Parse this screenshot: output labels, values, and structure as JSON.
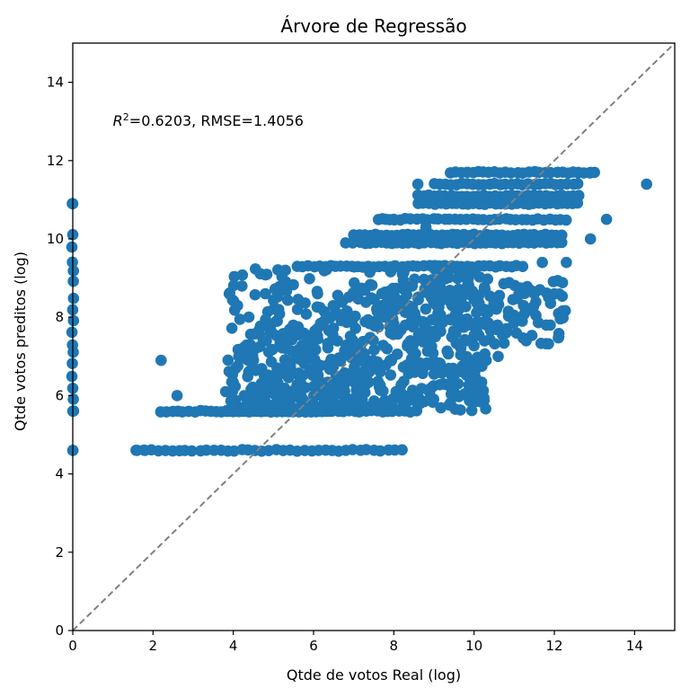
{
  "chart_data": {
    "type": "scatter",
    "title": "Árvore de Regressão",
    "xlabel": "Qtde de votos Real (log)",
    "ylabel": "Qtde votos preditos (log)",
    "xlim": [
      0,
      15
    ],
    "ylim": [
      0,
      15
    ],
    "xticks": [
      0,
      2,
      4,
      6,
      8,
      10,
      12,
      14
    ],
    "yticks": [
      0,
      2,
      4,
      6,
      8,
      10,
      12,
      14
    ],
    "grid": false,
    "marker_color": "#1f77b4",
    "reference_line": {
      "style": "dashed",
      "color": "#808080",
      "from": [
        0,
        0
      ],
      "to": [
        15,
        15
      ]
    },
    "annotation": {
      "r2_symbol": "R",
      "r2_exponent": "2",
      "text": "=0.6203, RMSE=1.4056",
      "x": 1.0,
      "y": 13.0
    },
    "clusters": [
      {
        "name": "zero-real",
        "x_range": [
          0,
          0.05
        ],
        "y_levels": [
          4.6,
          5.6,
          5.9,
          6.2,
          6.5,
          6.8,
          7.1,
          7.3,
          7.6,
          7.9,
          8.2,
          8.5,
          8.9,
          9.2,
          9.4,
          9.8,
          10.1,
          10.9
        ],
        "density": 1
      },
      {
        "name": "bottom-row",
        "x_range": [
          1.6,
          8.2
        ],
        "y_levels": [
          4.6
        ],
        "density": 0.8
      },
      {
        "name": "low-band",
        "x_range": [
          2.2,
          8.4
        ],
        "y_levels": [
          5.6
        ],
        "density": 1
      },
      {
        "name": "main-mass",
        "x_range": [
          3.8,
          10.3
        ],
        "y_range": [
          5.6,
          9.3
        ],
        "density": 1
      },
      {
        "name": "band-9-3",
        "x_range": [
          5.6,
          11.2
        ],
        "y_levels": [
          9.3
        ],
        "density": 1
      },
      {
        "name": "band-10",
        "x_range": [
          7.0,
          12.2
        ],
        "y_levels": [
          9.9,
          10.1
        ],
        "density": 1
      },
      {
        "name": "band-10-5",
        "x_range": [
          7.6,
          12.3
        ],
        "y_levels": [
          10.5
        ],
        "density": 1
      },
      {
        "name": "band-11",
        "x_range": [
          8.6,
          12.6
        ],
        "y_levels": [
          10.9,
          11.1
        ],
        "density": 1
      },
      {
        "name": "band-11-4",
        "x_range": [
          9.0,
          12.6
        ],
        "y_levels": [
          11.4
        ],
        "density": 1
      },
      {
        "name": "band-11-7",
        "x_range": [
          9.4,
          12.9
        ],
        "y_levels": [
          11.7
        ],
        "density": 1
      },
      {
        "name": "mid-right",
        "x_range": [
          10.2,
          12.3
        ],
        "y_range": [
          7.3,
          9.0
        ],
        "density": 0.6
      }
    ],
    "points": [
      [
        0,
        4.6
      ],
      [
        0,
        5.6
      ],
      [
        0,
        10.9
      ],
      [
        1.6,
        4.6
      ],
      [
        1.8,
        4.6
      ],
      [
        2.2,
        6.9
      ],
      [
        2.6,
        6.0
      ],
      [
        3.9,
        8.6
      ],
      [
        4.8,
        8.6
      ],
      [
        5.1,
        8.6
      ],
      [
        5.3,
        9.2
      ],
      [
        5.6,
        8.2
      ],
      [
        6.1,
        8.6
      ],
      [
        6.8,
        9.9
      ],
      [
        7.0,
        10.1
      ],
      [
        7.1,
        10.0
      ],
      [
        7.8,
        10.5
      ],
      [
        8.0,
        10.5
      ],
      [
        8.6,
        11.4
      ],
      [
        8.8,
        10.3
      ],
      [
        9.6,
        6.3
      ],
      [
        9.8,
        6.9
      ],
      [
        10.0,
        6.5
      ],
      [
        10.3,
        6.9
      ],
      [
        10.6,
        7.0
      ],
      [
        10.8,
        7.6
      ],
      [
        11.2,
        7.9
      ],
      [
        11.3,
        7.4
      ],
      [
        11.5,
        8.6
      ],
      [
        11.7,
        9.4
      ],
      [
        11.8,
        7.8
      ],
      [
        11.9,
        7.8
      ],
      [
        12.0,
        8.6
      ],
      [
        12.3,
        9.4
      ],
      [
        12.6,
        11.7
      ],
      [
        12.9,
        10.0
      ],
      [
        12.9,
        11.7
      ],
      [
        13.0,
        11.7
      ],
      [
        13.3,
        10.5
      ],
      [
        14.3,
        11.4
      ]
    ]
  }
}
